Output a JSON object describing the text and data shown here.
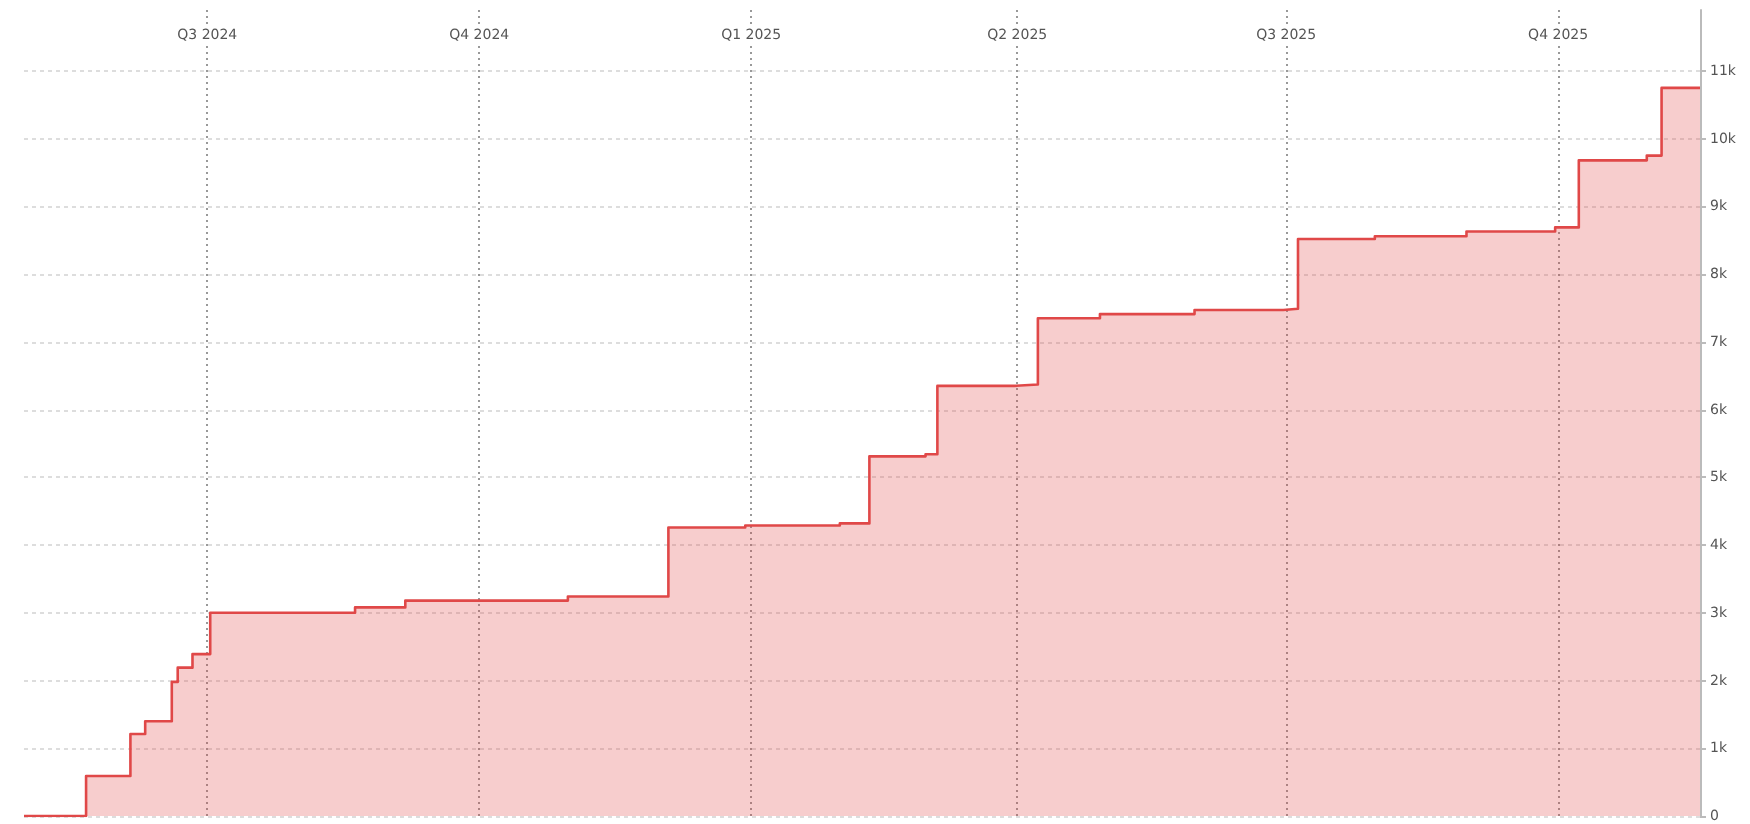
{
  "chart_data": {
    "type": "step",
    "x": [
      "2024-04-30",
      "2024-05-21",
      "2024-06-05",
      "2024-06-10",
      "2024-06-19",
      "2024-06-21",
      "2024-06-26",
      "2024-07-02",
      "2024-08-20",
      "2024-09-06",
      "2024-10-31",
      "2024-12-04",
      "2024-12-30",
      "2025-01-31",
      "2025-02-10",
      "2025-03-01",
      "2025-03-05",
      "2025-03-31",
      "2025-04-08",
      "2025-04-29",
      "2025-05-31",
      "2025-06-30",
      "2025-07-05",
      "2025-07-31",
      "2025-08-31",
      "2025-09-30",
      "2025-10-08",
      "2025-10-31",
      "2025-11-05",
      "2025-11-18"
    ],
    "series": [
      {
        "type": "area",
        "color": "#e04848",
        "values": [
          0,
          590,
          1210,
          1400,
          1980,
          2190,
          2390,
          3000,
          3080,
          3180,
          3240,
          4260,
          4290,
          4320,
          5310,
          5340,
          6350,
          6370,
          7350,
          7410,
          7470,
          7490,
          8520,
          8560,
          8630,
          8690,
          9680,
          9750,
          10750,
          10750
        ]
      }
    ],
    "xlim": [
      "2024-04-30",
      "2025-11-18"
    ],
    "xticks": [
      {
        "value": "2024-07-01",
        "label": "Q3 2024"
      },
      {
        "value": "2024-10-01",
        "label": "Q4 2024"
      },
      {
        "value": "2025-01-01",
        "label": "Q1 2025"
      },
      {
        "value": "2025-04-01",
        "label": "Q2 2025"
      },
      {
        "value": "2025-07-01",
        "label": "Q3 2025"
      },
      {
        "value": "2025-10-01",
        "label": "Q4 2025"
      }
    ],
    "ylim": [
      0,
      11900
    ],
    "yticks": [
      0,
      {
        "value": 1000,
        "label": "1k"
      },
      {
        "value": 2000,
        "label": "2k"
      },
      {
        "value": 3000,
        "label": "3k"
      },
      {
        "value": 4000,
        "label": "4k"
      },
      {
        "value": 5000,
        "label": "5k"
      },
      {
        "value": 6000,
        "label": "6k"
      },
      {
        "value": 7000,
        "label": "7k"
      },
      {
        "value": 8000,
        "label": "8k"
      },
      {
        "value": 9000,
        "label": "9k"
      },
      {
        "value": 10000,
        "label": "10k"
      },
      {
        "value": 11000,
        "label": "11k"
      }
    ],
    "grid": true,
    "marker": "none",
    "line_style": "solid"
  }
}
